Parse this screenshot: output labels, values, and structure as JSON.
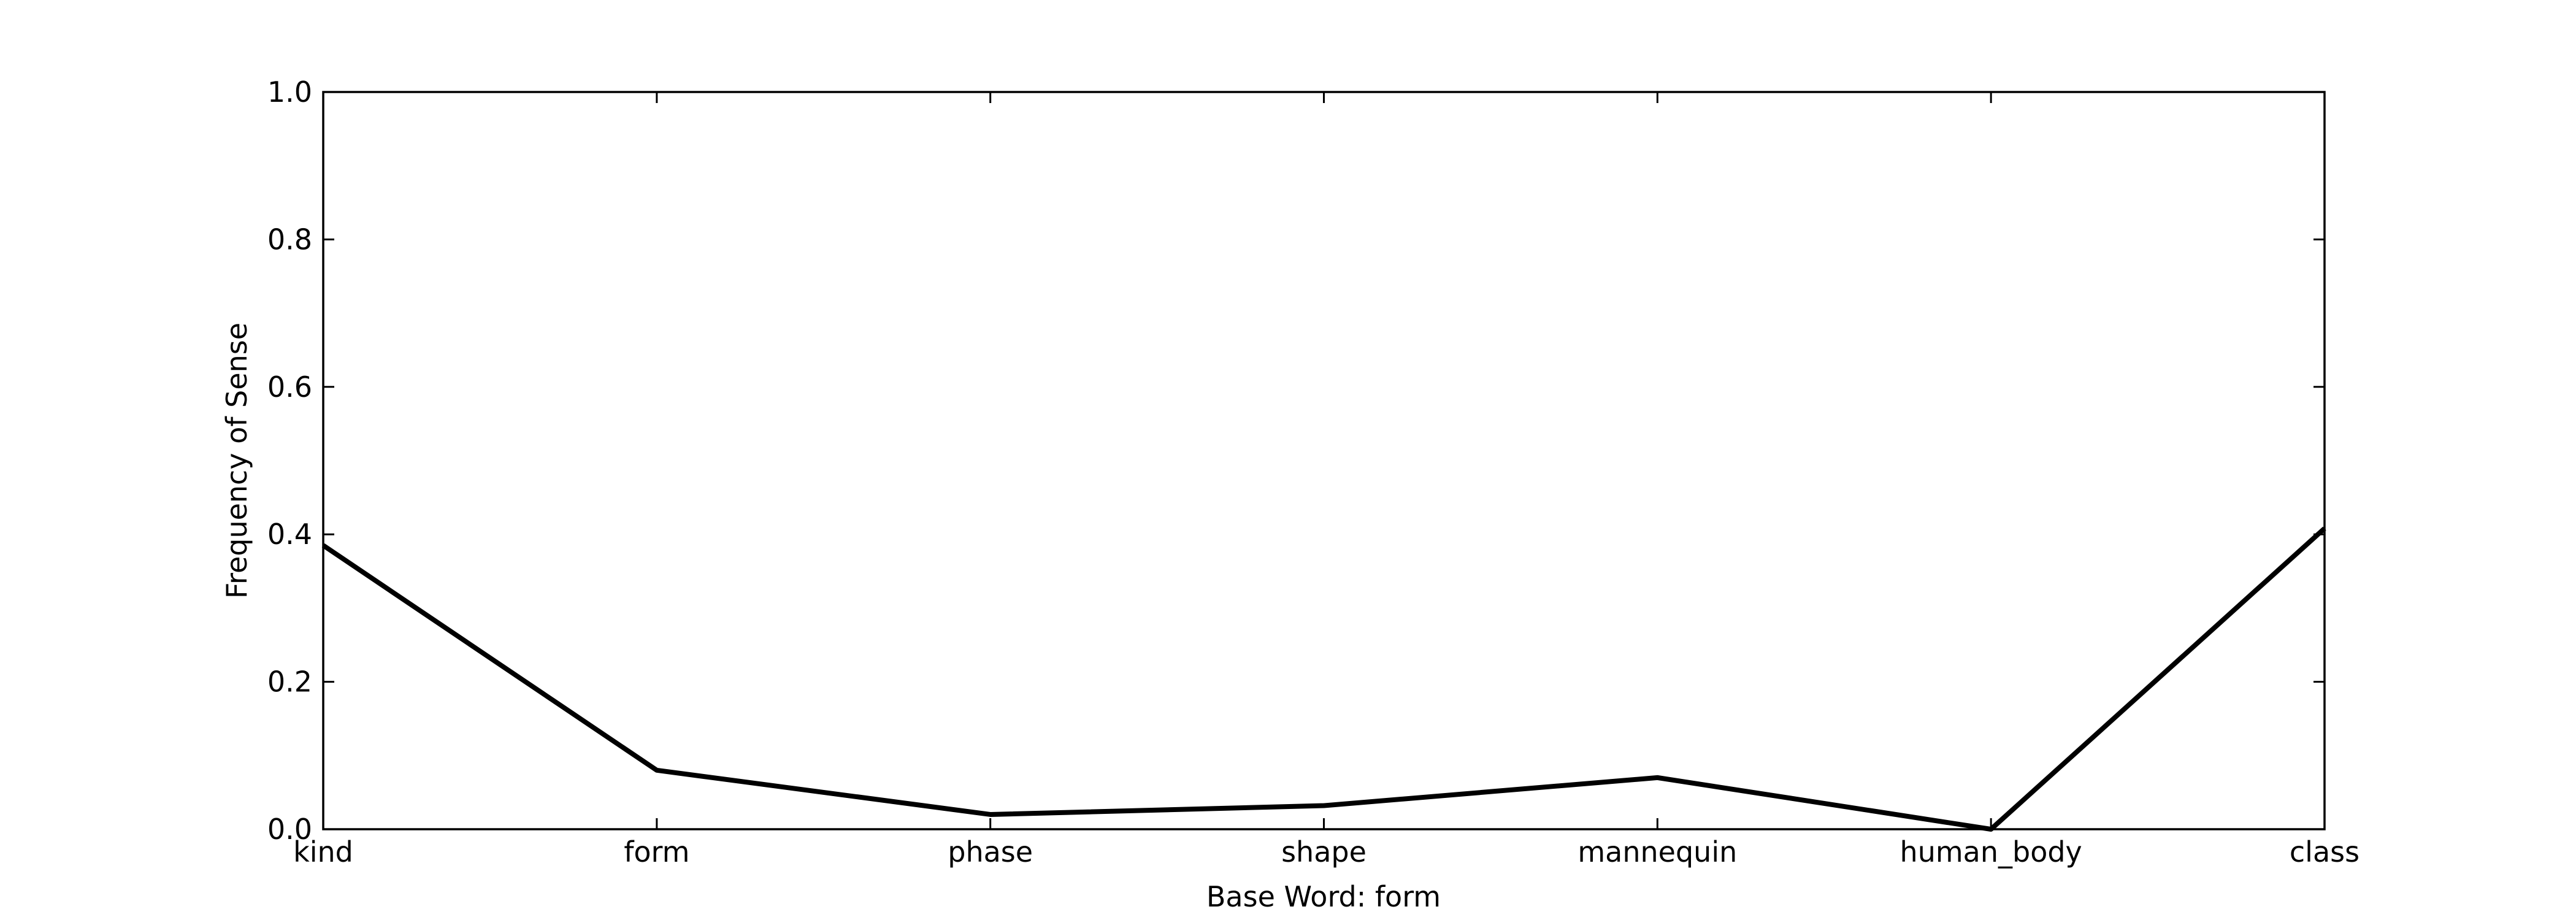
{
  "chart_data": {
    "type": "line",
    "categories": [
      "kind",
      "form",
      "phase",
      "shape",
      "mannequin",
      "human_body",
      "class"
    ],
    "series": [
      {
        "values": [
          0.385,
          0.08,
          0.02,
          0.032,
          0.07,
          0.0,
          0.408
        ],
        "color": "#000000"
      }
    ],
    "title": "",
    "xlabel": "Base Word: form",
    "ylabel": "Frequency of Sense",
    "ylim": [
      0.0,
      1.0
    ],
    "yticks": [
      "0.0",
      "0.2",
      "0.4",
      "0.6",
      "0.8",
      "1.0"
    ],
    "grid": false
  }
}
